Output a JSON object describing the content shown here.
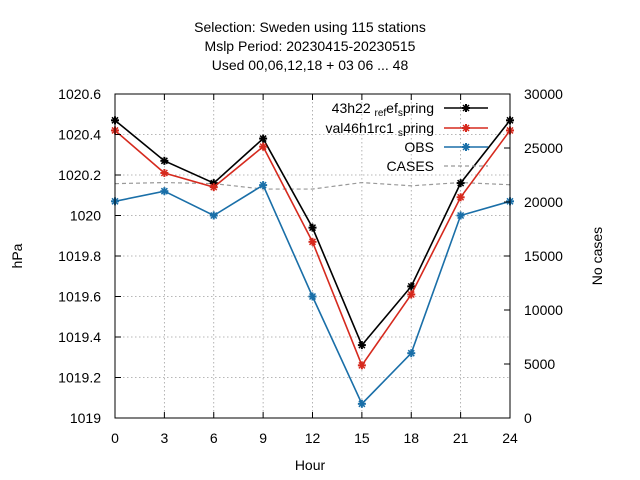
{
  "chart_data": {
    "type": "line",
    "title_lines": [
      "Selection: Sweden using   115 stations",
      "Mslp   Period: 20230415-20230515",
      "Used  00,06,12,18  + 03 06 ... 48"
    ],
    "xlabel": "Hour",
    "ylabel": "hPa",
    "y2label": "No cases",
    "x": [
      0,
      3,
      6,
      9,
      12,
      15,
      18,
      21,
      24
    ],
    "x_ticks": [
      "0",
      "3",
      "6",
      "9",
      "12",
      "15",
      "18",
      "21",
      "24"
    ],
    "xlim": [
      0,
      24
    ],
    "ylim": [
      1019.0,
      1020.6
    ],
    "y_ticks": [
      "1019",
      "1019.2",
      "1019.4",
      "1019.6",
      "1019.8",
      "1020",
      "1020.2",
      "1020.4",
      "1020.6"
    ],
    "y2lim": [
      0,
      30000
    ],
    "y2_ticks": [
      "0",
      "5000",
      "10000",
      "15000",
      "20000",
      "25000",
      "30000"
    ],
    "grid": true,
    "legend_position": "top-right",
    "series": [
      {
        "name": "43h22_ref_spring",
        "legend_parts": [
          "43h22",
          "ref",
          "s",
          "pring"
        ],
        "axis": "y",
        "color": "#000000",
        "style": "solid-marker",
        "values": [
          1020.47,
          1020.27,
          1020.16,
          1020.38,
          1019.94,
          1019.36,
          1019.65,
          1020.16,
          1020.47
        ]
      },
      {
        "name": "val46h1rc1_spring",
        "legend_parts": [
          "val46h1rc1",
          "s",
          "pring"
        ],
        "axis": "y",
        "color": "#d62a1e",
        "style": "solid-marker",
        "values": [
          1020.42,
          1020.21,
          1020.14,
          1020.34,
          1019.87,
          1019.26,
          1019.61,
          1020.09,
          1020.42
        ]
      },
      {
        "name": "OBS",
        "axis": "y",
        "color": "#1a6fa8",
        "style": "solid-marker",
        "values": [
          1020.07,
          1020.12,
          1020.0,
          1020.15,
          1019.6,
          1019.07,
          1019.32,
          1020.0,
          1020.07
        ]
      },
      {
        "name": "CASES",
        "axis": "y2",
        "color": "#999999",
        "style": "dashed",
        "values": [
          21700,
          21800,
          21700,
          21200,
          21200,
          21800,
          21500,
          21800,
          21600
        ]
      }
    ]
  }
}
